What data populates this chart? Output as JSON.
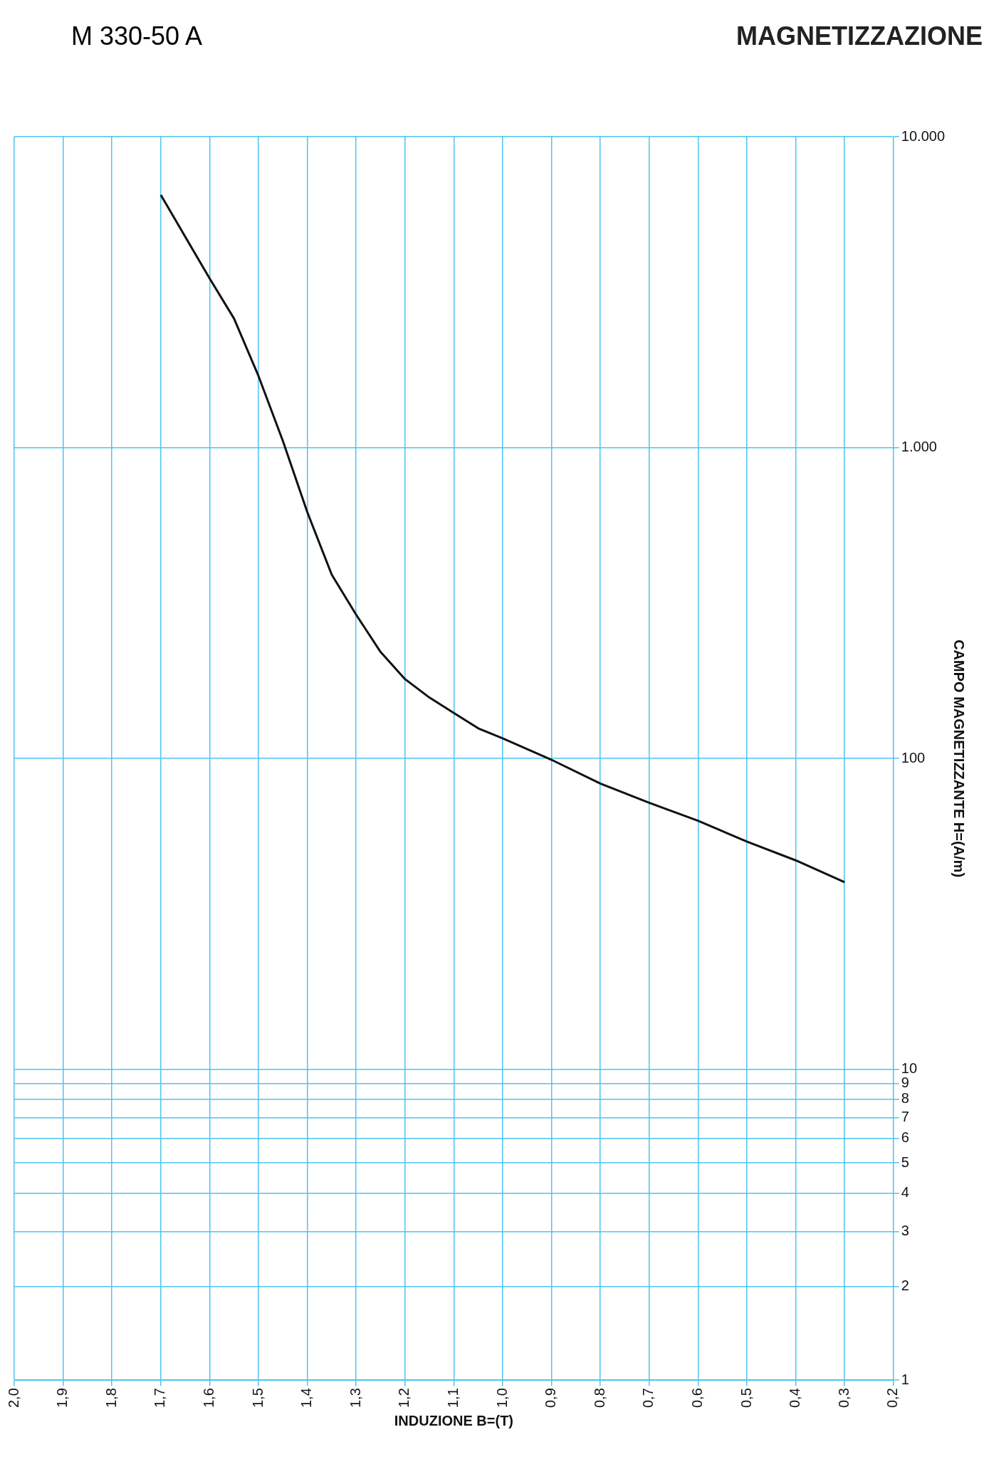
{
  "chart_data": {
    "type": "line",
    "title": "MAGNETIZZAZIONE",
    "subtitle": "M 330-50 A",
    "xlabel": "INDUZIONE B=(T)",
    "ylabel": "CAMPO MAGNETIZZANTE H=(A/m)",
    "x": [
      1.7,
      1.6,
      1.55,
      1.5,
      1.45,
      1.4,
      1.35,
      1.3,
      1.25,
      1.2,
      1.15,
      1.1,
      1.05,
      1.0,
      0.9,
      0.8,
      0.7,
      0.6,
      0.5,
      0.4,
      0.3
    ],
    "series": [
      {
        "color": "#111111",
        "values": [
          6500,
          3500,
          2600,
          1700,
          1050,
          620,
          390,
          290,
          220,
          180,
          157,
          140,
          125,
          116,
          99,
          83,
          72,
          63,
          54,
          47,
          40
        ]
      }
    ],
    "xlim": [
      2.0,
      0.2
    ],
    "xticks": [
      {
        "value": 2.0,
        "label": "2,0"
      },
      {
        "value": 1.9,
        "label": "1,9"
      },
      {
        "value": 1.8,
        "label": "1,8"
      },
      {
        "value": 1.7,
        "label": "1,7"
      },
      {
        "value": 1.6,
        "label": "1,6"
      },
      {
        "value": 1.5,
        "label": "1,5"
      },
      {
        "value": 1.4,
        "label": "1,4"
      },
      {
        "value": 1.3,
        "label": "1,3"
      },
      {
        "value": 1.2,
        "label": "1,2"
      },
      {
        "value": 1.1,
        "label": "1,1"
      },
      {
        "value": 1.0,
        "label": "1,0"
      },
      {
        "value": 0.9,
        "label": "0,9"
      },
      {
        "value": 0.8,
        "label": "0,8"
      },
      {
        "value": 0.7,
        "label": "0,7"
      },
      {
        "value": 0.6,
        "label": "0,6"
      },
      {
        "value": 0.5,
        "label": "0,5"
      },
      {
        "value": 0.4,
        "label": "0,4"
      },
      {
        "value": 0.3,
        "label": "0,3"
      },
      {
        "value": 0.2,
        "label": "0,2"
      }
    ],
    "ylim": [
      1,
      10000
    ],
    "yticks": [
      1,
      2,
      3,
      4,
      5,
      6,
      7,
      8,
      9,
      10,
      100,
      {
        "value": 1000,
        "label": "1.000"
      },
      {
        "value": 10000,
        "label": "10.000"
      }
    ],
    "log": "y",
    "grid": true,
    "legend": false,
    "marker": "none",
    "line_style": "solid"
  }
}
